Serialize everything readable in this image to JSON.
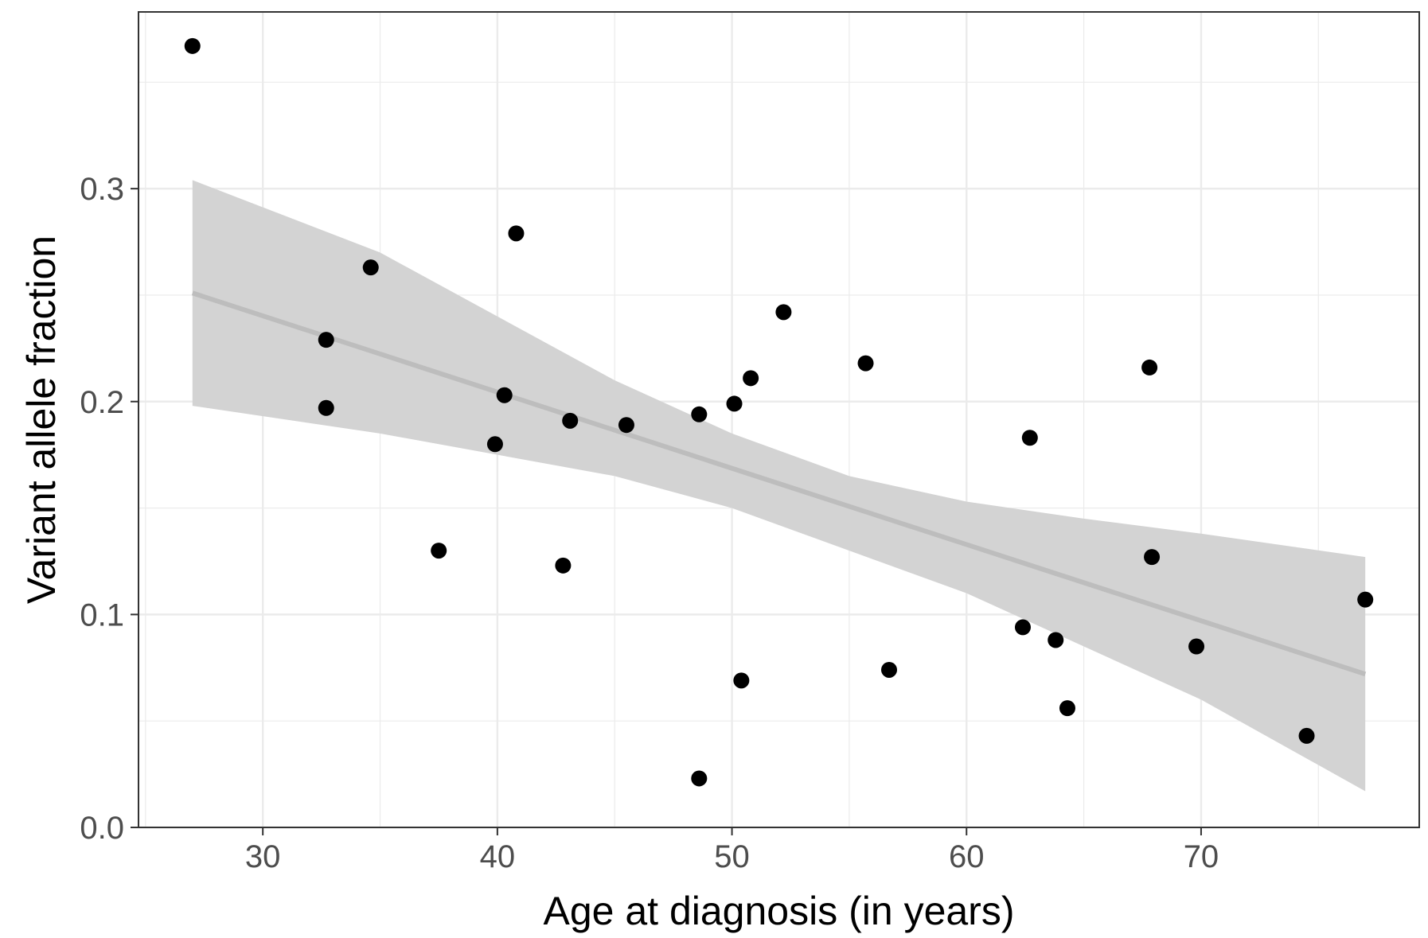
{
  "chart_data": {
    "type": "scatter",
    "title": "",
    "xlabel": "Age at diagnosis (in years)",
    "ylabel": "Variant allele fraction",
    "xlim": [
      24.7,
      79.3
    ],
    "ylim": [
      0.0,
      0.383
    ],
    "x_ticks": [
      30,
      40,
      50,
      60,
      70
    ],
    "x_tick_labels": [
      "30",
      "40",
      "50",
      "60",
      "70"
    ],
    "y_ticks": [
      0.0,
      0.1,
      0.2,
      0.3
    ],
    "y_tick_labels": [
      "0.0",
      "0.1",
      "0.2",
      "0.3"
    ],
    "grid": true,
    "points": [
      {
        "x": 27.0,
        "y": 0.367
      },
      {
        "x": 32.7,
        "y": 0.229
      },
      {
        "x": 32.7,
        "y": 0.197
      },
      {
        "x": 34.6,
        "y": 0.263
      },
      {
        "x": 37.5,
        "y": 0.13
      },
      {
        "x": 39.9,
        "y": 0.18
      },
      {
        "x": 40.3,
        "y": 0.203
      },
      {
        "x": 40.8,
        "y": 0.279
      },
      {
        "x": 42.8,
        "y": 0.123
      },
      {
        "x": 43.1,
        "y": 0.191
      },
      {
        "x": 45.5,
        "y": 0.189
      },
      {
        "x": 48.6,
        "y": 0.023
      },
      {
        "x": 48.6,
        "y": 0.194
      },
      {
        "x": 50.1,
        "y": 0.199
      },
      {
        "x": 50.4,
        "y": 0.069
      },
      {
        "x": 50.8,
        "y": 0.211
      },
      {
        "x": 52.2,
        "y": 0.242
      },
      {
        "x": 55.7,
        "y": 0.218
      },
      {
        "x": 56.7,
        "y": 0.074
      },
      {
        "x": 62.4,
        "y": 0.094
      },
      {
        "x": 62.7,
        "y": 0.183
      },
      {
        "x": 63.8,
        "y": 0.088
      },
      {
        "x": 64.3,
        "y": 0.056
      },
      {
        "x": 67.8,
        "y": 0.216
      },
      {
        "x": 67.9,
        "y": 0.127
      },
      {
        "x": 69.8,
        "y": 0.085
      },
      {
        "x": 74.5,
        "y": 0.043
      },
      {
        "x": 77.0,
        "y": 0.107
      }
    ],
    "fit_line": {
      "x": [
        27.0,
        77.0
      ],
      "y": [
        0.251,
        0.072
      ]
    },
    "confidence_band": {
      "x": [
        27.0,
        35.0,
        45.0,
        50.0,
        55.0,
        60.0,
        65.0,
        70.0,
        77.0
      ],
      "lower": [
        0.198,
        0.185,
        0.165,
        0.15,
        0.13,
        0.11,
        0.085,
        0.06,
        0.017
      ],
      "upper": [
        0.304,
        0.27,
        0.21,
        0.185,
        0.165,
        0.153,
        0.145,
        0.138,
        0.127
      ]
    },
    "colors": {
      "points": "#000000",
      "fit_line": "#bdbdbd",
      "band": "#d3d3d3",
      "grid": "#ebebeb",
      "panel_border": "#333333",
      "tick_text": "#4d4d4d"
    }
  }
}
